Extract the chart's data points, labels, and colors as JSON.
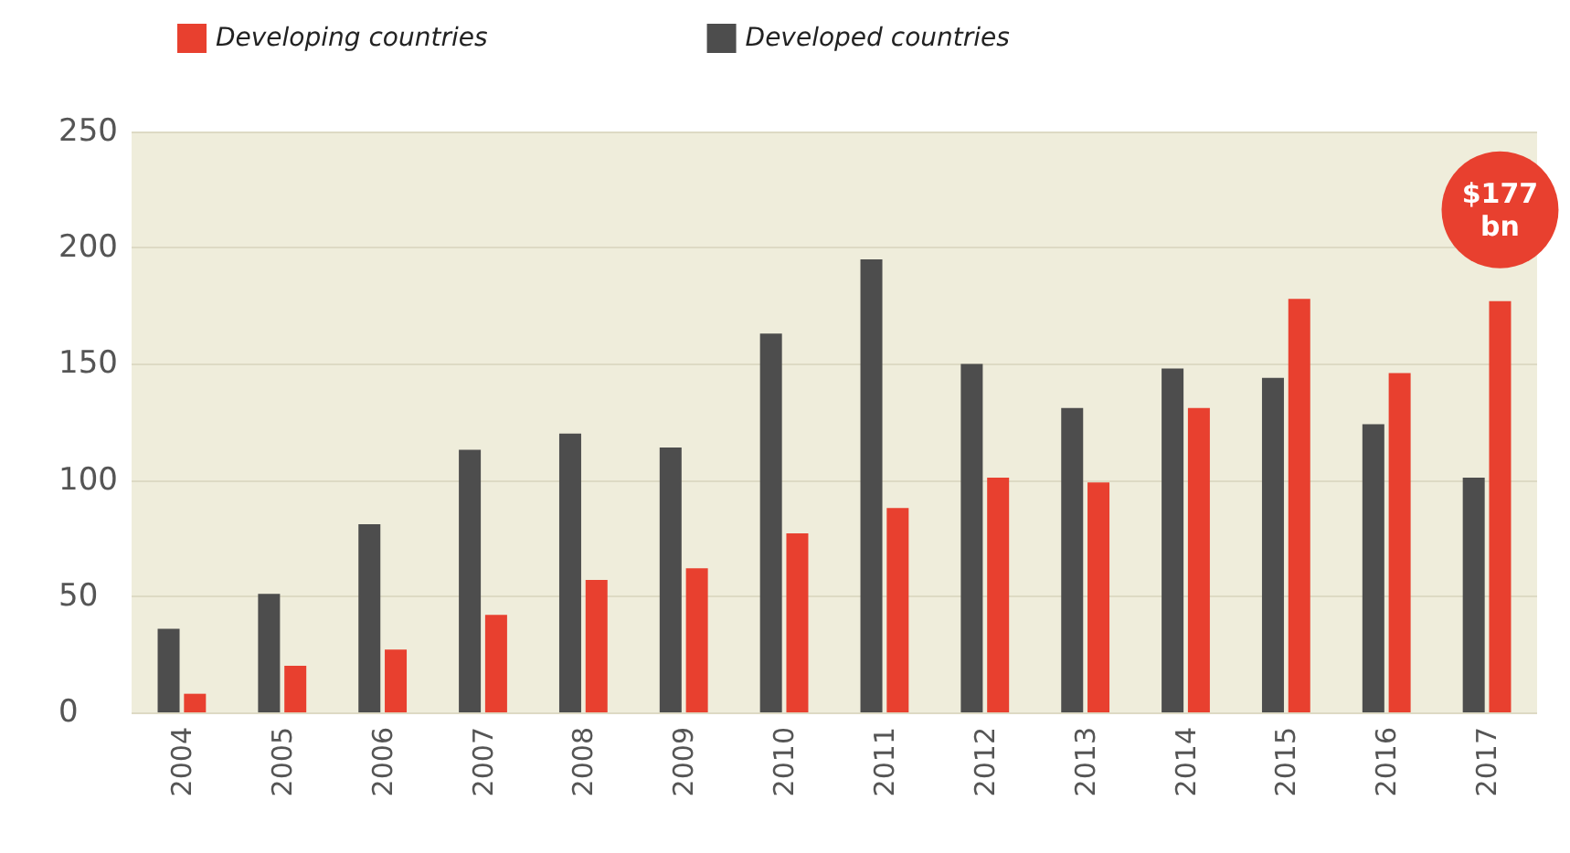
{
  "chart_data": {
    "type": "bar",
    "categories": [
      "2004",
      "2005",
      "2006",
      "2007",
      "2008",
      "2009",
      "2010",
      "2011",
      "2012",
      "2013",
      "2014",
      "2015",
      "2016",
      "2017"
    ],
    "series": [
      {
        "name": "Developed countries",
        "color": "#4d4d4d",
        "values": [
          36,
          51,
          81,
          113,
          120,
          114,
          163,
          195,
          150,
          131,
          148,
          144,
          124,
          101
        ]
      },
      {
        "name": "Developing countries",
        "color": "#e8402f",
        "values": [
          8,
          20,
          27,
          42,
          57,
          62,
          77,
          88,
          101,
          99,
          131,
          178,
          146,
          177
        ]
      }
    ],
    "ylim": [
      0,
      250
    ],
    "yticks": [
      0,
      50,
      100,
      150,
      200,
      250
    ],
    "grid": "y",
    "legend": "top left",
    "annotations": [
      {
        "text": "$177 bn",
        "x": "2017",
        "y": 177
      }
    ]
  }
}
